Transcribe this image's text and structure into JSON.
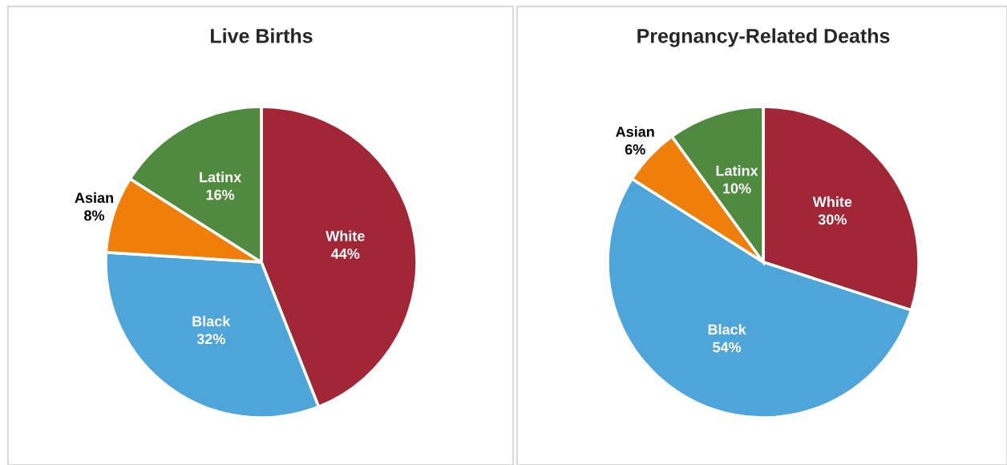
{
  "chart_data": [
    {
      "type": "pie",
      "title": "Live Births",
      "categories": [
        "White",
        "Black",
        "Asian",
        "Latinx"
      ],
      "values": [
        44,
        32,
        8,
        16
      ],
      "value_labels": [
        "44%",
        "32%",
        "8%",
        "16%"
      ],
      "colors": [
        "#a12737",
        "#4ea5d9",
        "#f07f09",
        "#4f8a3f"
      ]
    },
    {
      "type": "pie",
      "title": "Pregnancy-Related Deaths",
      "categories": [
        "White",
        "Black",
        "Asian",
        "Latinx"
      ],
      "values": [
        30,
        54,
        6,
        10
      ],
      "value_labels": [
        "30%",
        "54%",
        "6%",
        "10%"
      ],
      "colors": [
        "#a12737",
        "#4ea5d9",
        "#f07f09",
        "#4f8a3f"
      ]
    }
  ]
}
